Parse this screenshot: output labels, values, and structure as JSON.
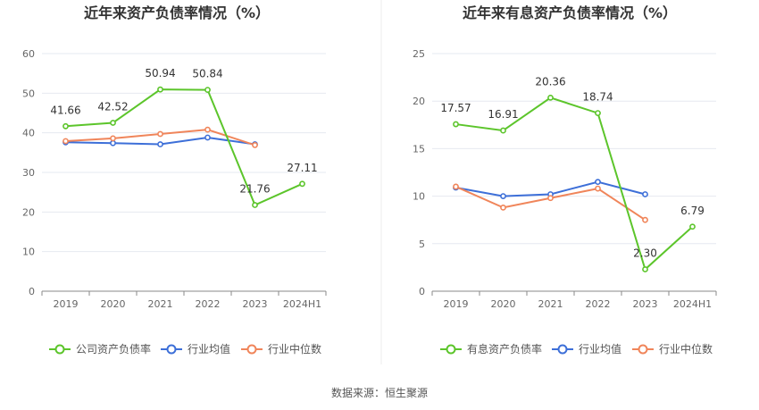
{
  "source_text": "数据来源：恒生聚源",
  "colors": {
    "company": "#5cc52b",
    "industry_avg": "#3d6fd8",
    "industry_median": "#f0855a"
  },
  "chart_data": [
    {
      "type": "line",
      "title": "近年来资产负债率情况（%）",
      "categories": [
        "2019",
        "2020",
        "2021",
        "2022",
        "2023",
        "2024H1"
      ],
      "ylim": [
        0,
        60
      ],
      "yticks": [
        0,
        10,
        20,
        30,
        40,
        50,
        60
      ],
      "grid": true,
      "legend_position": "bottom",
      "series": [
        {
          "name": "公司资产负债率",
          "color": "#5cc52b",
          "values": [
            41.66,
            42.52,
            50.94,
            50.84,
            21.76,
            27.11
          ],
          "labels": [
            "41.66",
            "42.52",
            "50.94",
            "50.84",
            "21.76",
            "27.11"
          ]
        },
        {
          "name": "行业均值",
          "color": "#3d6fd8",
          "values": [
            37.6,
            37.4,
            37.1,
            38.8,
            37.1,
            null
          ],
          "labels": null
        },
        {
          "name": "行业中位数",
          "color": "#f0855a",
          "values": [
            37.9,
            38.6,
            39.7,
            40.8,
            36.9,
            null
          ],
          "labels": null
        }
      ]
    },
    {
      "type": "line",
      "title": "近年来有息资产负债率情况（%）",
      "categories": [
        "2019",
        "2020",
        "2021",
        "2022",
        "2023",
        "2024H1"
      ],
      "ylim": [
        0,
        25
      ],
      "yticks": [
        0,
        5,
        10,
        15,
        20,
        25
      ],
      "grid": true,
      "legend_position": "bottom",
      "series": [
        {
          "name": "有息资产负债率",
          "color": "#5cc52b",
          "values": [
            17.57,
            16.91,
            20.36,
            18.74,
            2.3,
            6.79
          ],
          "labels": [
            "17.57",
            "16.91",
            "20.36",
            "18.74",
            "2.30",
            "6.79"
          ]
        },
        {
          "name": "行业均值",
          "color": "#3d6fd8",
          "values": [
            10.9,
            10.0,
            10.2,
            11.5,
            10.2,
            null
          ],
          "labels": null
        },
        {
          "name": "行业中位数",
          "color": "#f0855a",
          "values": [
            11.0,
            8.8,
            9.8,
            10.8,
            7.5,
            null
          ],
          "labels": null
        }
      ]
    }
  ]
}
